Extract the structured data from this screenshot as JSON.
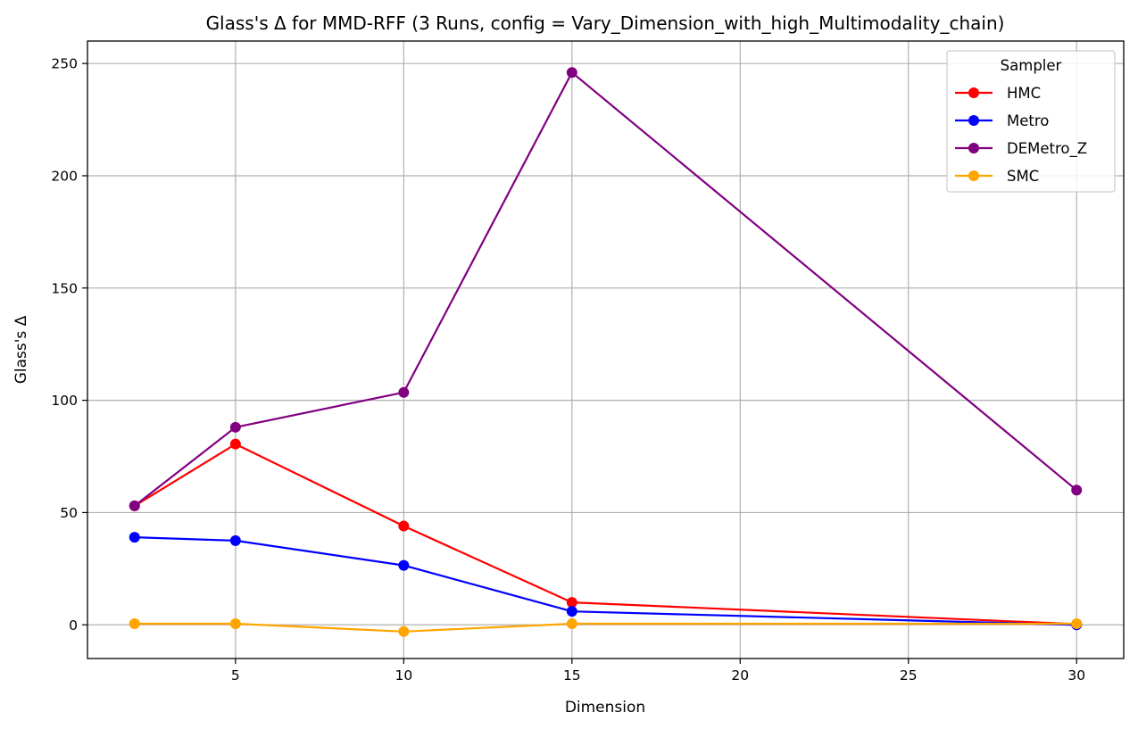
{
  "chart_data": {
    "type": "line",
    "title": "Glass's Δ for MMD-RFF (3 Runs, config = Vary_Dimension_with_high_Multimodality_chain)",
    "xlabel": "Dimension",
    "ylabel": "Glass's Δ",
    "x": [
      2,
      5,
      10,
      15,
      30
    ],
    "xlim": [
      0.6,
      31.4
    ],
    "ylim": [
      -15,
      260
    ],
    "xticks": [
      5,
      10,
      15,
      20,
      25,
      30
    ],
    "yticks": [
      0,
      50,
      100,
      150,
      200,
      250
    ],
    "grid": true,
    "legend": {
      "title": "Sampler",
      "position": "top-right"
    },
    "series": [
      {
        "name": "HMC",
        "color": "#ff0000",
        "values": [
          53,
          80.5,
          44,
          10,
          0.3
        ]
      },
      {
        "name": "Metro",
        "color": "#0000ff",
        "values": [
          39,
          37.5,
          26.5,
          6,
          0
        ]
      },
      {
        "name": "DEMetro_Z",
        "color": "#800080",
        "values": [
          53,
          88,
          103.5,
          246,
          60
        ]
      },
      {
        "name": "SMC",
        "color": "#ffa500",
        "values": [
          0.5,
          0.5,
          -3,
          0.5,
          0.5
        ]
      }
    ]
  }
}
